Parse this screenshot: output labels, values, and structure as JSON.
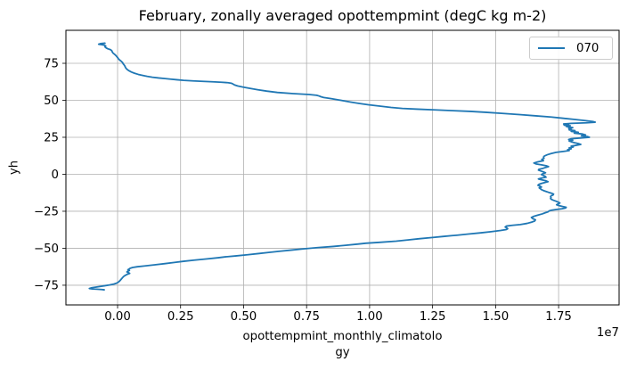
{
  "title": "February, zonally averaged opottempmint (degC kg m-2)",
  "axes": {
    "ylabel": "yh",
    "xlabel_line1": "opottempmint_monthly_climatolo",
    "xlabel_line2": "gy",
    "offset_text": "1e7"
  },
  "legend": {
    "label": "070"
  },
  "colors": {
    "line": "#1f77b4",
    "grid": "#b0b0b0",
    "spine": "#000000",
    "legend_border": "#cccccc",
    "background": "#ffffff"
  },
  "chart_data": {
    "type": "line",
    "title": "February, zonally averaged opottempmint (degC kg m-2)",
    "xlabel": "opottempmint_monthly_climatology",
    "ylabel": "yh",
    "grid": true,
    "legend_position": "upper right",
    "legend_entries": [
      "070"
    ],
    "x_offset_label": "1e7",
    "x_scale": 10000000,
    "xlim": [
      -0.205,
      1.99
    ],
    "ylim": [
      -88.3,
      97.3
    ],
    "xticks": [
      0,
      0.25,
      0.5,
      0.75,
      1.0,
      1.25,
      1.5,
      1.75
    ],
    "xtick_labels": [
      "0.00",
      "0.25",
      "0.50",
      "0.75",
      "1.00",
      "1.25",
      "1.50",
      "1.75"
    ],
    "yticks": [
      -75,
      -50,
      -25,
      0,
      25,
      50,
      75
    ],
    "ytick_labels": [
      "−75",
      "−50",
      "−25",
      "0",
      "25",
      "50",
      "75"
    ],
    "series": [
      {
        "name": "070",
        "color": "#1f77b4",
        "points": [
          [
            -0.05,
            88.6
          ],
          [
            -0.068,
            88.3
          ],
          [
            -0.075,
            87.9
          ],
          [
            -0.063,
            87.6
          ],
          [
            -0.052,
            87.2
          ],
          [
            -0.047,
            86.7
          ],
          [
            -0.05,
            86.1
          ],
          [
            -0.046,
            85.5
          ],
          [
            -0.04,
            84.9
          ],
          [
            -0.028,
            84.2
          ],
          [
            -0.023,
            83.5
          ],
          [
            -0.021,
            82.7
          ],
          [
            -0.018,
            81.9
          ],
          [
            -0.012,
            81.1
          ],
          [
            -0.007,
            80.3
          ],
          [
            -0.003,
            79.5
          ],
          [
            0.001,
            78.7
          ],
          [
            0.004,
            77.9
          ],
          [
            0.009,
            77.1
          ],
          [
            0.015,
            76.3
          ],
          [
            0.02,
            75.5
          ],
          [
            0.022,
            74.7
          ],
          [
            0.026,
            73.9
          ],
          [
            0.029,
            73.1
          ],
          [
            0.031,
            72.3
          ],
          [
            0.034,
            71.5
          ],
          [
            0.039,
            70.7
          ],
          [
            0.046,
            69.9
          ],
          [
            0.055,
            69.1
          ],
          [
            0.067,
            68.3
          ],
          [
            0.082,
            67.5
          ],
          [
            0.1,
            66.8
          ],
          [
            0.117,
            66.2
          ],
          [
            0.138,
            65.6
          ],
          [
            0.163,
            65.1
          ],
          [
            0.188,
            64.7
          ],
          [
            0.21,
            64.3
          ],
          [
            0.235,
            63.9
          ],
          [
            0.262,
            63.5
          ],
          [
            0.3,
            63.1
          ],
          [
            0.338,
            62.8
          ],
          [
            0.378,
            62.5
          ],
          [
            0.412,
            62.2
          ],
          [
            0.438,
            61.9
          ],
          [
            0.452,
            61.5
          ],
          [
            0.458,
            61.0
          ],
          [
            0.464,
            60.4
          ],
          [
            0.476,
            59.7
          ],
          [
            0.499,
            58.9
          ],
          [
            0.528,
            58.0
          ],
          [
            0.558,
            57.1
          ],
          [
            0.592,
            56.2
          ],
          [
            0.634,
            55.3
          ],
          [
            0.697,
            54.5
          ],
          [
            0.76,
            53.9
          ],
          [
            0.79,
            53.4
          ],
          [
            0.8,
            52.9
          ],
          [
            0.807,
            52.4
          ],
          [
            0.818,
            51.9
          ],
          [
            0.845,
            51.2
          ],
          [
            0.873,
            50.4
          ],
          [
            0.898,
            49.6
          ],
          [
            0.925,
            48.8
          ],
          [
            0.958,
            47.9
          ],
          [
            0.995,
            47.0
          ],
          [
            1.04,
            46.1
          ],
          [
            1.085,
            45.2
          ],
          [
            1.13,
            44.5
          ],
          [
            1.19,
            44.0
          ],
          [
            1.26,
            43.5
          ],
          [
            1.33,
            43.0
          ],
          [
            1.4,
            42.5
          ],
          [
            1.46,
            41.9
          ],
          [
            1.53,
            41.1
          ],
          [
            1.6,
            40.3
          ],
          [
            1.66,
            39.5
          ],
          [
            1.72,
            38.7
          ],
          [
            1.765,
            37.9
          ],
          [
            1.81,
            37.1
          ],
          [
            1.855,
            36.3
          ],
          [
            1.885,
            35.7
          ],
          [
            1.895,
            35.2
          ],
          [
            1.86,
            34.8
          ],
          [
            1.8,
            34.4
          ],
          [
            1.77,
            34.0
          ],
          [
            1.79,
            33.6
          ],
          [
            1.772,
            33.2
          ],
          [
            1.796,
            32.8
          ],
          [
            1.78,
            32.4
          ],
          [
            1.79,
            32.0
          ],
          [
            1.806,
            31.5
          ],
          [
            1.79,
            31.0
          ],
          [
            1.8,
            30.5
          ],
          [
            1.792,
            30.0
          ],
          [
            1.815,
            29.5
          ],
          [
            1.8,
            29.0
          ],
          [
            1.828,
            28.4
          ],
          [
            1.812,
            27.8
          ],
          [
            1.845,
            27.2
          ],
          [
            1.857,
            26.6
          ],
          [
            1.84,
            26.0
          ],
          [
            1.865,
            25.5
          ],
          [
            1.872,
            25.0
          ],
          [
            1.835,
            24.5
          ],
          [
            1.8,
            24.0
          ],
          [
            1.79,
            23.5
          ],
          [
            1.806,
            23.0
          ],
          [
            1.792,
            22.5
          ],
          [
            1.8,
            22.0
          ],
          [
            1.812,
            21.4
          ],
          [
            1.828,
            20.8
          ],
          [
            1.838,
            20.2
          ],
          [
            1.82,
            19.6
          ],
          [
            1.8,
            19.0
          ],
          [
            1.808,
            18.4
          ],
          [
            1.792,
            17.8
          ],
          [
            1.8,
            17.2
          ],
          [
            1.786,
            16.6
          ],
          [
            1.792,
            16.0
          ],
          [
            1.768,
            15.4
          ],
          [
            1.74,
            14.8
          ],
          [
            1.72,
            14.0
          ],
          [
            1.705,
            13.2
          ],
          [
            1.694,
            12.4
          ],
          [
            1.69,
            11.6
          ],
          [
            1.692,
            10.8
          ],
          [
            1.683,
            10.0
          ],
          [
            1.69,
            9.2
          ],
          [
            1.668,
            8.4
          ],
          [
            1.652,
            7.6
          ],
          [
            1.66,
            7.0
          ],
          [
            1.682,
            6.4
          ],
          [
            1.7,
            5.8
          ],
          [
            1.71,
            5.2
          ],
          [
            1.698,
            4.6
          ],
          [
            1.688,
            4.0
          ],
          [
            1.672,
            3.4
          ],
          [
            1.67,
            2.8
          ],
          [
            1.68,
            2.2
          ],
          [
            1.69,
            1.6
          ],
          [
            1.698,
            1.0
          ],
          [
            1.688,
            0.4
          ],
          [
            1.682,
            -0.2
          ],
          [
            1.69,
            -0.8
          ],
          [
            1.697,
            -1.4
          ],
          [
            1.7,
            -2.0
          ],
          [
            1.682,
            -2.6
          ],
          [
            1.67,
            -3.2
          ],
          [
            1.684,
            -3.8
          ],
          [
            1.7,
            -4.4
          ],
          [
            1.708,
            -5.0
          ],
          [
            1.695,
            -5.6
          ],
          [
            1.682,
            -6.2
          ],
          [
            1.672,
            -6.8
          ],
          [
            1.668,
            -7.4
          ],
          [
            1.676,
            -8.0
          ],
          [
            1.682,
            -8.6
          ],
          [
            1.673,
            -9.2
          ],
          [
            1.678,
            -9.8
          ],
          [
            1.682,
            -10.4
          ],
          [
            1.69,
            -11.0
          ],
          [
            1.7,
            -11.6
          ],
          [
            1.71,
            -12.2
          ],
          [
            1.722,
            -12.8
          ],
          [
            1.73,
            -13.4
          ],
          [
            1.728,
            -14.0
          ],
          [
            1.72,
            -14.6
          ],
          [
            1.718,
            -15.2
          ],
          [
            1.72,
            -15.8
          ],
          [
            1.718,
            -16.4
          ],
          [
            1.722,
            -17.0
          ],
          [
            1.73,
            -17.6
          ],
          [
            1.74,
            -18.2
          ],
          [
            1.748,
            -18.8
          ],
          [
            1.755,
            -19.4
          ],
          [
            1.748,
            -20.0
          ],
          [
            1.742,
            -20.6
          ],
          [
            1.752,
            -21.2
          ],
          [
            1.766,
            -21.8
          ],
          [
            1.78,
            -22.3
          ],
          [
            1.778,
            -22.8
          ],
          [
            1.764,
            -23.3
          ],
          [
            1.74,
            -23.8
          ],
          [
            1.722,
            -24.3
          ],
          [
            1.712,
            -24.8
          ],
          [
            1.708,
            -25.4
          ],
          [
            1.697,
            -26.0
          ],
          [
            1.685,
            -26.8
          ],
          [
            1.668,
            -27.6
          ],
          [
            1.652,
            -28.4
          ],
          [
            1.642,
            -29.2
          ],
          [
            1.648,
            -30.0
          ],
          [
            1.658,
            -30.8
          ],
          [
            1.655,
            -31.6
          ],
          [
            1.642,
            -32.4
          ],
          [
            1.625,
            -33.2
          ],
          [
            1.598,
            -34.0
          ],
          [
            1.565,
            -34.5
          ],
          [
            1.543,
            -35.0
          ],
          [
            1.538,
            -35.6
          ],
          [
            1.544,
            -36.2
          ],
          [
            1.548,
            -36.8
          ],
          [
            1.542,
            -37.4
          ],
          [
            1.52,
            -38.0
          ],
          [
            1.482,
            -38.8
          ],
          [
            1.44,
            -39.6
          ],
          [
            1.392,
            -40.4
          ],
          [
            1.345,
            -41.2
          ],
          [
            1.293,
            -42.0
          ],
          [
            1.245,
            -42.8
          ],
          [
            1.195,
            -43.6
          ],
          [
            1.152,
            -44.4
          ],
          [
            1.105,
            -45.2
          ],
          [
            1.04,
            -46.0
          ],
          [
            0.985,
            -46.6
          ],
          [
            0.952,
            -47.2
          ],
          [
            0.905,
            -48.0
          ],
          [
            0.855,
            -48.8
          ],
          [
            0.792,
            -49.6
          ],
          [
            0.738,
            -50.4
          ],
          [
            0.692,
            -51.2
          ],
          [
            0.645,
            -52.0
          ],
          [
            0.6,
            -52.8
          ],
          [
            0.558,
            -53.6
          ],
          [
            0.515,
            -54.4
          ],
          [
            0.468,
            -55.2
          ],
          [
            0.428,
            -55.8
          ],
          [
            0.4,
            -56.4
          ],
          [
            0.355,
            -57.2
          ],
          [
            0.305,
            -58.0
          ],
          [
            0.262,
            -58.8
          ],
          [
            0.225,
            -59.6
          ],
          [
            0.188,
            -60.4
          ],
          [
            0.148,
            -61.2
          ],
          [
            0.105,
            -62.0
          ],
          [
            0.078,
            -62.5
          ],
          [
            0.06,
            -63.0
          ],
          [
            0.05,
            -63.5
          ],
          [
            0.046,
            -64.0
          ],
          [
            0.041,
            -64.5
          ],
          [
            0.047,
            -65.0
          ],
          [
            0.041,
            -65.5
          ],
          [
            0.037,
            -66.0
          ],
          [
            0.043,
            -66.5
          ],
          [
            0.048,
            -67.0
          ],
          [
            0.04,
            -67.5
          ],
          [
            0.034,
            -68.0
          ],
          [
            0.026,
            -68.8
          ],
          [
            0.021,
            -69.6
          ],
          [
            0.017,
            -70.4
          ],
          [
            0.013,
            -71.2
          ],
          [
            0.009,
            -72.0
          ],
          [
            0.004,
            -72.8
          ],
          [
            -0.004,
            -73.6
          ],
          [
            -0.015,
            -74.2
          ],
          [
            -0.032,
            -74.8
          ],
          [
            -0.05,
            -75.3
          ],
          [
            -0.068,
            -75.8
          ],
          [
            -0.088,
            -76.3
          ],
          [
            -0.105,
            -76.8
          ],
          [
            -0.112,
            -77.2
          ],
          [
            -0.1,
            -77.5
          ],
          [
            -0.082,
            -77.7
          ],
          [
            -0.063,
            -77.9
          ],
          [
            -0.053,
            -78.1
          ]
        ]
      }
    ]
  }
}
